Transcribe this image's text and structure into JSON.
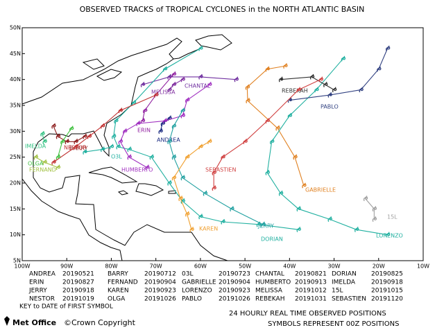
{
  "title": "OBSERVED TRACKS of TROPICAL CYCLONES in the NORTH ATLANTIC BASIN",
  "map": {
    "xlim": [
      -100,
      -10
    ],
    "ylim": [
      5,
      50
    ],
    "xticks": [
      {
        "value": -100,
        "label": "100W"
      },
      {
        "value": -90,
        "label": "90W"
      },
      {
        "value": -80,
        "label": "80W"
      },
      {
        "value": -70,
        "label": "70W"
      },
      {
        "value": -60,
        "label": "60W"
      },
      {
        "value": -50,
        "label": "50W"
      },
      {
        "value": -40,
        "label": "40W"
      },
      {
        "value": -30,
        "label": "30W"
      },
      {
        "value": -20,
        "label": "20W"
      },
      {
        "value": -10,
        "label": "10W"
      }
    ],
    "yticks": [
      {
        "value": 5,
        "label": "5N"
      },
      {
        "value": 10,
        "label": "10N"
      },
      {
        "value": 15,
        "label": "15N"
      },
      {
        "value": 20,
        "label": "20N"
      },
      {
        "value": 25,
        "label": "25N"
      },
      {
        "value": 30,
        "label": "30N"
      },
      {
        "value": 35,
        "label": "35N"
      },
      {
        "value": 40,
        "label": "40N"
      },
      {
        "value": 45,
        "label": "45N"
      },
      {
        "value": 50,
        "label": "50N"
      }
    ],
    "tracks": [
      {
        "name": "ANDREA",
        "map_label": "ANDREA",
        "date": "20190521",
        "color": "#1a2a80",
        "lon": [
          -69,
          -68.5,
          -67
        ],
        "lat": [
          30,
          31.5,
          32.5
        ]
      },
      {
        "name": "BARRY",
        "map_label": "BARRY",
        "date": "20190712",
        "color": "#8b1a1a",
        "lon": [
          -86,
          -88,
          -90,
          -92,
          -93
        ],
        "lat": [
          29,
          28,
          28,
          29,
          31
        ]
      },
      {
        "name": "03L",
        "map_label": "O3L",
        "date": "20190723",
        "color": "#20b0a0",
        "lon": [
          -86,
          -82,
          -80
        ],
        "lat": [
          26,
          26.5,
          27
        ]
      },
      {
        "name": "CHANTAL",
        "map_label": "CHANTAL",
        "date": "20190821",
        "color": "#7030a0",
        "lon": [
          -73,
          -67,
          -60,
          -52
        ],
        "lat": [
          39,
          40.5,
          40.5,
          40
        ]
      },
      {
        "name": "DORIAN",
        "map_label": "DORIAN",
        "date": "20190825",
        "color": "#20b0a0",
        "lon": [
          -38,
          -47,
          -55,
          -60,
          -64,
          -67,
          -71,
          -76,
          -78.5,
          -79.5,
          -79,
          -75,
          -68,
          -60
        ],
        "lat": [
          11,
          12,
          12.5,
          13.5,
          16.5,
          20,
          25,
          26.5,
          27,
          29,
          32,
          35.5,
          42,
          46
        ]
      },
      {
        "name": "ERIN",
        "map_label": "ERIN",
        "date": "20190827",
        "color": "#9020a0",
        "lon": [
          -73,
          -72.5,
          -70,
          -66
        ],
        "lat": [
          32,
          34,
          37,
          41
        ]
      },
      {
        "name": "FERNAND",
        "map_label": "FERNAND",
        "date": "20190904",
        "color": "#a0c040",
        "lon": [
          -92,
          -95,
          -97
        ],
        "lat": [
          23,
          24,
          25
        ]
      },
      {
        "name": "GABRIELLE",
        "map_label": "GABRIELLE",
        "date": "20190904",
        "color": "#e08020",
        "lon": [
          -36.8,
          -38.8,
          -42.7,
          -49.4,
          -49.5,
          -45,
          -41
        ],
        "lat": [
          19.5,
          25,
          30.6,
          35.9,
          38.5,
          42,
          42.6
        ]
      },
      {
        "name": "HUMBERTO",
        "map_label": "HUMBERTO",
        "date": "20190913",
        "color": "#a030c0",
        "lon": [
          -72,
          -76,
          -78,
          -77,
          -74,
          -68,
          -64,
          -63,
          -58
        ],
        "lat": [
          23,
          25,
          28,
          30,
          31.5,
          32,
          33,
          36,
          39
        ]
      },
      {
        "name": "IMELDA",
        "map_label": "IMELDA",
        "date": "20190918",
        "color": "#30c080",
        "lon": [
          -95,
          -95.5
        ],
        "lat": [
          28,
          29.5
        ]
      },
      {
        "name": "JERRY",
        "map_label": "JERRY",
        "date": "20190918",
        "color": "#20a0a0",
        "lon": [
          -46,
          -53,
          -59,
          -64,
          -66,
          -67,
          -66,
          -64
        ],
        "lat": [
          12,
          15,
          18,
          21,
          25,
          28,
          31,
          34
        ]
      },
      {
        "name": "KAREN",
        "map_label": "KAREN",
        "date": "20190923",
        "color": "#f0a030",
        "lon": [
          -62,
          -63,
          -64.5,
          -66,
          -63,
          -60,
          -58
        ],
        "lat": [
          11,
          14,
          17,
          21,
          25,
          27,
          28
        ]
      },
      {
        "name": "LORENZO",
        "map_label": "LORENZO",
        "date": "20190923",
        "color": "#20b0a0",
        "lon": [
          -18,
          -25,
          -31,
          -38,
          -42,
          -45,
          -44,
          -40,
          -34,
          -28
        ],
        "lat": [
          10,
          11,
          13,
          15,
          18,
          22,
          28,
          33,
          38,
          44
        ]
      },
      {
        "name": "MELISSA",
        "map_label": "MELISSA",
        "date": "20191012",
        "color": "#8030a0",
        "lon": [
          -67,
          -66,
          -64
        ],
        "lat": [
          38,
          39,
          40
        ]
      },
      {
        "name": "15L",
        "map_label": "15L",
        "date": "20191015",
        "color": "#a0a0a0",
        "lon": [
          -23,
          -21,
          -21
        ],
        "lat": [
          17,
          15,
          13
        ]
      },
      {
        "name": "NESTOR",
        "map_label": "NESTOR",
        "date": "20191019",
        "color": "#c03030",
        "lon": [
          -93,
          -88,
          -85,
          -82,
          -78,
          -70
        ],
        "lat": [
          24,
          27,
          29,
          31,
          34,
          37
        ]
      },
      {
        "name": "OLGA",
        "map_label": "OLGA",
        "date": "20191026",
        "color": "#40c040",
        "lon": [
          -92,
          -91,
          -89
        ],
        "lat": [
          25,
          28,
          30.5
        ]
      },
      {
        "name": "PABLO",
        "map_label": "PABLO",
        "date": "20191026",
        "color": "#304080",
        "lon": [
          -40,
          -31,
          -24,
          -20,
          -18
        ],
        "lat": [
          36,
          37,
          38,
          42,
          46
        ]
      },
      {
        "name": "REBEKAH",
        "map_label": "REBEKAH",
        "date": "20191031",
        "color": "#303030",
        "lon": [
          -42,
          -35,
          -32,
          -30
        ],
        "lat": [
          40,
          40.5,
          39,
          38
        ]
      },
      {
        "name": "SEBASTIEN",
        "map_label": "SEBASTIEN",
        "date": "20191120",
        "color": "#d04040",
        "lon": [
          -57,
          -57,
          -55,
          -50,
          -45,
          -38,
          -33
        ],
        "lat": [
          19,
          22,
          25,
          28,
          32,
          38,
          40
        ]
      }
    ]
  },
  "key_note": "KEY to DATE of FIRST SYMBOL",
  "footer": {
    "logo": "Met Office",
    "copyright": "©Crown Copyright",
    "line1": "24 HOURLY REAL TIME OBSERVED POSITIONS",
    "line2": "SYMBOLS REPRESENT 00Z POSITIONS"
  }
}
